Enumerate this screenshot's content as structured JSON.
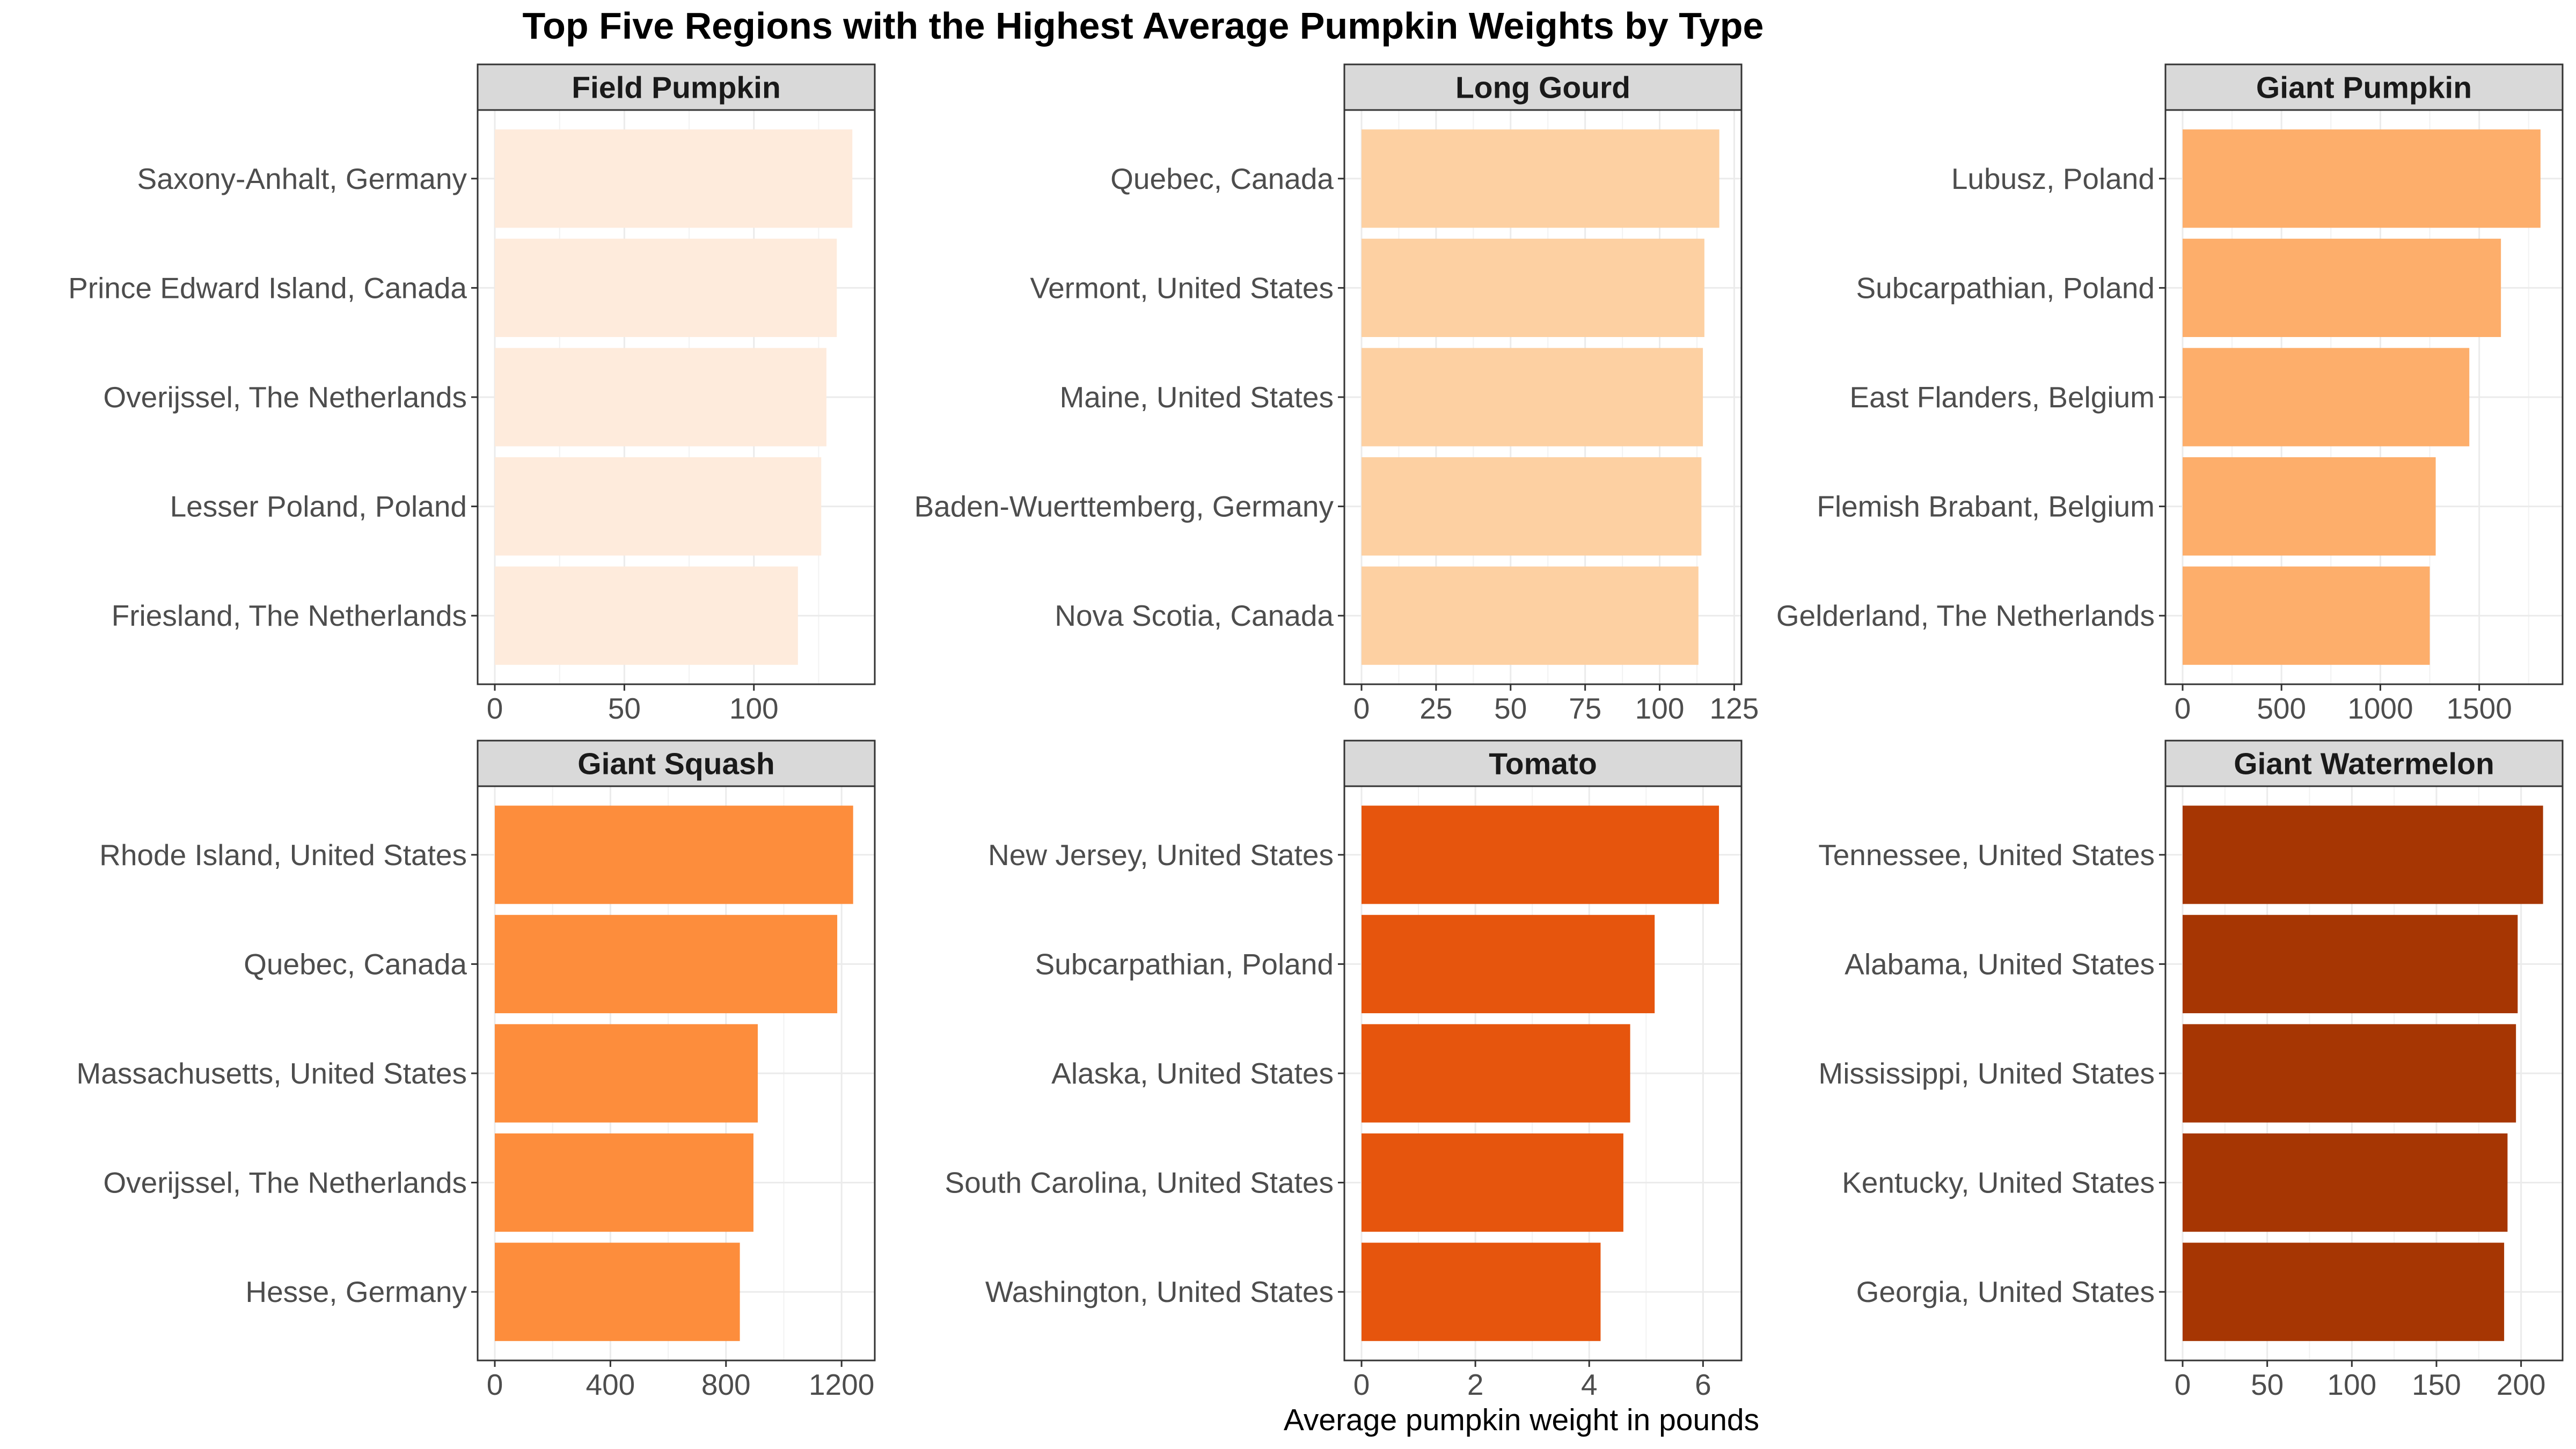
{
  "title": "Top Five Regions with the Highest Average Pumpkin Weights by Type",
  "xlabel": "Average pumpkin weight in pounds",
  "chart_data": [
    {
      "type": "bar",
      "orientation": "horizontal",
      "facet": "Field Pumpkin",
      "color": "#FEEBDC",
      "categories": [
        "Saxony-Anhalt, Germany",
        "Prince Edward Island, Canada",
        "Overijssel, The Netherlands",
        "Lesser Poland, Poland",
        "Friesland, The Netherlands"
      ],
      "values": [
        138,
        132,
        128,
        126,
        117
      ],
      "xlim": [
        0,
        145
      ],
      "xticks": [
        0,
        50,
        100
      ],
      "grid": true
    },
    {
      "type": "bar",
      "orientation": "horizontal",
      "facet": "Long Gourd",
      "color": "#FDD0A2",
      "categories": [
        "Quebec, Canada",
        "Vermont, United States",
        "Maine, United States",
        "Baden-Wuerttemberg, Germany",
        "Nova Scotia, Canada"
      ],
      "values": [
        120,
        115,
        114.5,
        114,
        113
      ],
      "xlim": [
        0,
        126
      ],
      "xticks": [
        0,
        25,
        50,
        75,
        100,
        125
      ],
      "grid": true
    },
    {
      "type": "bar",
      "orientation": "horizontal",
      "facet": "Giant Pumpkin",
      "color": "#FDAE6B",
      "categories": [
        "Lubusz, Poland",
        "Subcarpathian, Poland",
        "East Flanders, Belgium",
        "Flemish Brabant, Belgium",
        "Gelderland, The Netherlands"
      ],
      "values": [
        1810,
        1610,
        1450,
        1280,
        1250
      ],
      "xlim": [
        0,
        1900
      ],
      "xticks": [
        0,
        500,
        1000,
        1500
      ],
      "grid": true
    },
    {
      "type": "bar",
      "orientation": "horizontal",
      "facet": "Giant Squash",
      "color": "#FD8D3C",
      "categories": [
        "Rhode Island, United States",
        "Quebec, Canada",
        "Massachusetts, United States",
        "Overijssel, The Netherlands",
        "Hesse, Germany"
      ],
      "values": [
        1240,
        1185,
        910,
        895,
        848
      ],
      "xlim": [
        0,
        1300
      ],
      "xticks": [
        0,
        400,
        800,
        1200
      ],
      "grid": true
    },
    {
      "type": "bar",
      "orientation": "horizontal",
      "facet": "Tomato",
      "color": "#E6550D",
      "categories": [
        "New Jersey, United States",
        "Subcarpathian, Poland",
        "Alaska, United States",
        "South Carolina, United States",
        "Washington, United States"
      ],
      "values": [
        6.28,
        5.15,
        4.72,
        4.6,
        4.2
      ],
      "xlim": [
        0,
        6.6
      ],
      "xticks": [
        0,
        2,
        4,
        6
      ],
      "grid": true
    },
    {
      "type": "bar",
      "orientation": "horizontal",
      "facet": "Giant Watermelon",
      "color": "#A63603",
      "categories": [
        "Tennessee, United States",
        "Alabama, United States",
        "Mississippi, United States",
        "Kentucky, United States",
        "Georgia, United States"
      ],
      "values": [
        213,
        198,
        197,
        192,
        190
      ],
      "xlim": [
        0,
        222
      ],
      "xticks": [
        0,
        50,
        100,
        150,
        200
      ],
      "grid": true
    }
  ]
}
